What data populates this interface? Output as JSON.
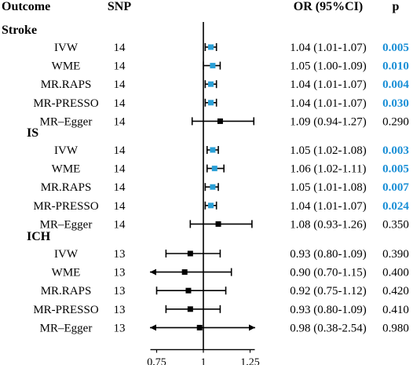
{
  "chart_data": {
    "type": "forest",
    "columns": {
      "outcome": "Outcome",
      "snp": "SNP",
      "or": "OR (95%CI)",
      "p": "p"
    },
    "xaxis": {
      "ticks": [
        "0.75",
        "1",
        "1.25"
      ],
      "tick_values": [
        0.75,
        1,
        1.25
      ],
      "reference": 1
    },
    "colors": {
      "significant": "#1a8fd6",
      "default": "#000000",
      "estimate_significant": "#2a9fd6",
      "estimate_default": "#000000"
    },
    "groups": [
      {
        "name": "Stroke",
        "rows": [
          {
            "method": "IVW",
            "snp": "14",
            "or": 1.04,
            "lo": 1.01,
            "hi": 1.07,
            "or_text": "1.04 (1.01-1.07)",
            "p": "0.005",
            "significant": true
          },
          {
            "method": "WME",
            "snp": "14",
            "or": 1.05,
            "lo": 1.0,
            "hi": 1.09,
            "or_text": "1.05 (1.00-1.09)",
            "p": "0.010",
            "significant": true
          },
          {
            "method": "MR.RAPS",
            "snp": "14",
            "or": 1.04,
            "lo": 1.01,
            "hi": 1.07,
            "or_text": "1.04 (1.01-1.07)",
            "p": "0.004",
            "significant": true
          },
          {
            "method": "MR-PRESSO",
            "snp": "14",
            "or": 1.04,
            "lo": 1.01,
            "hi": 1.07,
            "or_text": "1.04 (1.01-1.07)",
            "p": "0.030",
            "significant": true
          },
          {
            "method": "MR–Egger",
            "snp": "14",
            "or": 1.09,
            "lo": 0.94,
            "hi": 1.27,
            "or_text": "1.09 (0.94-1.27)",
            "p": "0.290",
            "significant": false
          }
        ]
      },
      {
        "name": "IS",
        "rows": [
          {
            "method": "IVW",
            "snp": "14",
            "or": 1.05,
            "lo": 1.02,
            "hi": 1.08,
            "or_text": "1.05 (1.02-1.08)",
            "p": "0.003",
            "significant": true
          },
          {
            "method": "WME",
            "snp": "14",
            "or": 1.06,
            "lo": 1.02,
            "hi": 1.11,
            "or_text": "1.06 (1.02-1.11)",
            "p": "0.005",
            "significant": true
          },
          {
            "method": "MR.RAPS",
            "snp": "14",
            "or": 1.05,
            "lo": 1.01,
            "hi": 1.08,
            "or_text": "1.05 (1.01-1.08)",
            "p": "0.007",
            "significant": true
          },
          {
            "method": "MR-PRESSO",
            "snp": "14",
            "or": 1.04,
            "lo": 1.01,
            "hi": 1.07,
            "or_text": "1.04 (1.01-1.07)",
            "p": "0.024",
            "significant": true
          },
          {
            "method": "MR–Egger",
            "snp": "14",
            "or": 1.08,
            "lo": 0.93,
            "hi": 1.26,
            "or_text": "1.08 (0.93-1.26)",
            "p": "0.350",
            "significant": false
          }
        ]
      },
      {
        "name": "ICH",
        "rows": [
          {
            "method": "IVW",
            "snp": "13",
            "or": 0.93,
            "lo": 0.8,
            "hi": 1.09,
            "or_text": "0.93 (0.80-1.09)",
            "p": "0.390",
            "significant": false
          },
          {
            "method": "WME",
            "snp": "13",
            "or": 0.9,
            "lo": 0.7,
            "hi": 1.15,
            "or_text": "0.90 (0.70-1.15)",
            "p": "0.400",
            "significant": false
          },
          {
            "method": "MR.RAPS",
            "snp": "13",
            "or": 0.92,
            "lo": 0.75,
            "hi": 1.12,
            "or_text": "0.92 (0.75-1.12)",
            "p": "0.420",
            "significant": false
          },
          {
            "method": "MR-PRESSO",
            "snp": "13",
            "or": 0.93,
            "lo": 0.8,
            "hi": 1.09,
            "or_text": "0.93 (0.80-1.09)",
            "p": "0.410",
            "significant": false
          },
          {
            "method": "MR–Egger",
            "snp": "13",
            "or": 0.98,
            "lo": 0.38,
            "hi": 2.54,
            "or_text": "0.98 (0.38-2.54)",
            "p": "0.980",
            "significant": false
          }
        ]
      }
    ]
  }
}
